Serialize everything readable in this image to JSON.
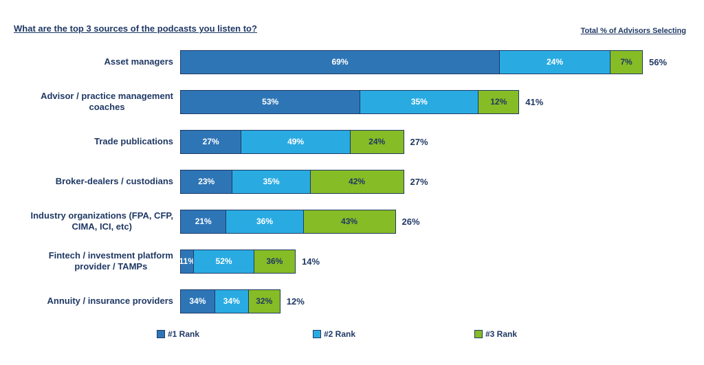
{
  "page": {
    "title": "What are the top 3 sources of the podcasts you listen to?",
    "right_header": "Total % of Advisors Selecting"
  },
  "colors": {
    "rank1_blue": "#2E75B6",
    "rank2_cyan": "#29ABE2",
    "rank3_green": "#86BC25",
    "navy_text_and_borders": "#1F3864",
    "background": "#FFFFFF"
  },
  "legend": {
    "position": "bottom",
    "items": [
      {
        "label": "#1 Rank",
        "color": "#2E75B6"
      },
      {
        "label": "#2 Rank",
        "color": "#29ABE2"
      },
      {
        "label": "#3 Rank",
        "color": "#86BC25"
      }
    ]
  },
  "chart_data": {
    "type": "bar",
    "variant": "horizontal-stacked",
    "title": "What are the top 3 sources of the podcasts you listen to?",
    "right_header": "Total % of Advisors Selecting",
    "legend": [
      "#1 Rank",
      "#2 Rank",
      "#3 Rank"
    ],
    "legend_position": "bottom",
    "grid": false,
    "axes_shown": false,
    "bar_scale_note": "Each bar's overall length is proportional to its Total % of Advisors Selecting (max 56% = full width); segment percentages are shares within each bar and sum to 100%.",
    "max_total_pct": 56,
    "rows": [
      {
        "label": "Asset managers",
        "total_pct": 56,
        "total_label": "56%",
        "segments": [
          {
            "rank": "#1 Rank",
            "pct": 69,
            "label": "69%"
          },
          {
            "rank": "#2 Rank",
            "pct": 24,
            "label": "24%"
          },
          {
            "rank": "#3 Rank",
            "pct": 7,
            "label": "7%"
          }
        ]
      },
      {
        "label": "Advisor / practice management\ncoaches",
        "total_pct": 41,
        "total_label": "41%",
        "segments": [
          {
            "rank": "#1 Rank",
            "pct": 53,
            "label": "53%"
          },
          {
            "rank": "#2 Rank",
            "pct": 35,
            "label": "35%"
          },
          {
            "rank": "#3 Rank",
            "pct": 12,
            "label": "12%"
          }
        ]
      },
      {
        "label": "Trade publications",
        "total_pct": 27,
        "total_label": "27%",
        "segments": [
          {
            "rank": "#1 Rank",
            "pct": 27,
            "label": "27%"
          },
          {
            "rank": "#2 Rank",
            "pct": 49,
            "label": "49%"
          },
          {
            "rank": "#3 Rank",
            "pct": 24,
            "label": "24%"
          }
        ]
      },
      {
        "label": "Broker-dealers / custodians",
        "total_pct": 27,
        "total_label": "27%",
        "segments": [
          {
            "rank": "#1 Rank",
            "pct": 23,
            "label": "23%"
          },
          {
            "rank": "#2 Rank",
            "pct": 35,
            "label": "35%"
          },
          {
            "rank": "#3 Rank",
            "pct": 42,
            "label": "42%"
          }
        ]
      },
      {
        "label": "Industry organizations (FPA, CFP,\nCIMA, ICI, etc)",
        "total_pct": 26,
        "total_label": "26%",
        "segments": [
          {
            "rank": "#1 Rank",
            "pct": 21,
            "label": "21%"
          },
          {
            "rank": "#2 Rank",
            "pct": 36,
            "label": "36%"
          },
          {
            "rank": "#3 Rank",
            "pct": 43,
            "label": "43%"
          }
        ]
      },
      {
        "label": "Fintech / investment platform\nprovider / TAMPs",
        "total_pct": 14,
        "total_label": "14%",
        "segments": [
          {
            "rank": "#1 Rank",
            "pct": 11,
            "label": "11%"
          },
          {
            "rank": "#2 Rank",
            "pct": 52,
            "label": "52%"
          },
          {
            "rank": "#3 Rank",
            "pct": 36,
            "label": "36%"
          }
        ]
      },
      {
        "label": "Annuity / insurance providers",
        "total_pct": 12,
        "total_label": "12%",
        "segments": [
          {
            "rank": "#1 Rank",
            "pct": 34,
            "label": "34%"
          },
          {
            "rank": "#2 Rank",
            "pct": 34,
            "label": "34%"
          },
          {
            "rank": "#3 Rank",
            "pct": 32,
            "label": "32%"
          }
        ]
      }
    ]
  }
}
